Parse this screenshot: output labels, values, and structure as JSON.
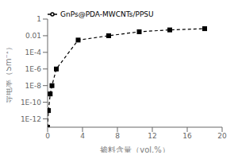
{
  "chart_data": {
    "type": "line",
    "x": [
      0,
      0.1,
      0.3,
      0.5,
      1.0,
      3.5,
      7.0,
      10.5,
      14.0,
      18.0
    ],
    "series": [
      {
        "name": "GnPs@PDA-MWCNTs/PPSU",
        "color": "#000000",
        "values": [
          1e-13,
          1e-11,
          1e-09,
          1e-08,
          1e-06,
          0.003,
          0.01,
          0.03,
          0.05,
          0.07
        ],
        "marker": "square",
        "line_style": "dashed"
      }
    ],
    "xlabel": "掺料含量（vol.%）",
    "ylabel": "导电率（Sm⁻¹）",
    "xlim": [
      0,
      20
    ],
    "xticks": [
      0,
      4,
      8,
      12,
      16,
      20
    ],
    "ylim": [
      1e-13,
      1
    ],
    "yticks": [
      {
        "value": 1e-12,
        "label": "1E-12"
      },
      {
        "value": 1e-10,
        "label": "1E-10"
      },
      {
        "value": 1e-08,
        "label": "1E-8"
      },
      {
        "value": 1e-06,
        "label": "1E-6"
      },
      {
        "value": 0.0001,
        "label": "1E-4"
      },
      0.01,
      1
    ],
    "log": "y",
    "grid": false,
    "legend": "upper left"
  }
}
